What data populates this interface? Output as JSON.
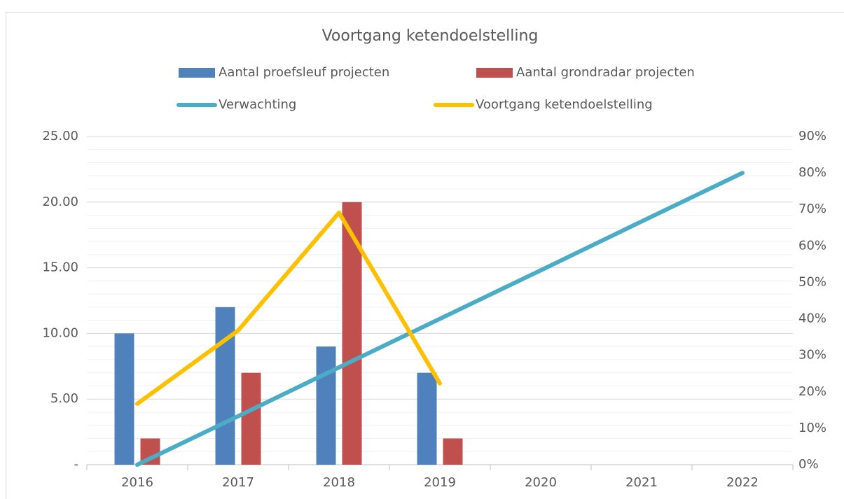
{
  "chart_data": {
    "type": "bar_line",
    "title": "Voortgang ketendoelstelling",
    "categories": [
      "2016",
      "2017",
      "2018",
      "2019",
      "2020",
      "2021",
      "2022"
    ],
    "series": [
      {
        "name": "Aantal proefsleuf projecten",
        "type": "bar",
        "color": "#4f81bd",
        "values": [
          10,
          12,
          9,
          7,
          null,
          null,
          null
        ]
      },
      {
        "name": "Aantal grondradar projecten",
        "type": "bar",
        "color": "#c0504d",
        "values": [
          2,
          7,
          20,
          2,
          null,
          null,
          null
        ]
      },
      {
        "name": "Verwachting",
        "type": "line",
        "axis": "y2",
        "color": "#4bacc6",
        "values": [
          0,
          13.3,
          26.7,
          40,
          53.3,
          66.7,
          80
        ]
      },
      {
        "name": "Voortgang ketendoelstelling",
        "type": "line",
        "axis": "y2",
        "color": "#ffc000",
        "values": [
          16.7,
          36.8,
          69.1,
          22.3,
          null,
          null,
          null
        ]
      }
    ],
    "ylim": [
      0,
      25
    ],
    "yticks": [
      {
        "value": 0,
        "label": "-"
      },
      {
        "value": 5,
        "label": "5.00"
      },
      {
        "value": 10,
        "label": "10.00"
      },
      {
        "value": 15,
        "label": "15.00"
      },
      {
        "value": 20,
        "label": "20.00"
      },
      {
        "value": 25,
        "label": "25.00"
      }
    ],
    "y2lim": [
      0,
      90
    ],
    "y2ticks": [
      {
        "value": 0,
        "label": "0%"
      },
      {
        "value": 10,
        "label": "10%"
      },
      {
        "value": 20,
        "label": "20%"
      },
      {
        "value": 30,
        "label": "30%"
      },
      {
        "value": 40,
        "label": "40%"
      },
      {
        "value": 50,
        "label": "50%"
      },
      {
        "value": 60,
        "label": "60%"
      },
      {
        "value": 70,
        "label": "70%"
      },
      {
        "value": 80,
        "label": "80%"
      },
      {
        "value": 90,
        "label": "90%"
      }
    ],
    "grid": true,
    "minor_grid": 1,
    "legend": "top"
  }
}
